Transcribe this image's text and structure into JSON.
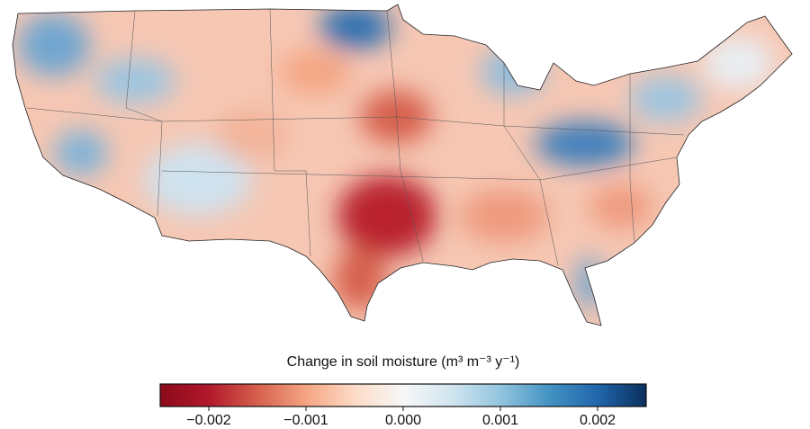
{
  "map": {
    "legend_title": "Change in soil moisture (m³ m⁻³ y⁻¹)",
    "colorbar": {
      "lim": [
        -0.0025,
        0.0025
      ],
      "ticks": [
        {
          "value": -0.002,
          "label": "−0.002"
        },
        {
          "value": -0.001,
          "label": "−0.001"
        },
        {
          "value": 0,
          "label": "0.000"
        },
        {
          "value": 0.001,
          "label": "0.001"
        },
        {
          "value": 0.002,
          "label": "0.002"
        }
      ],
      "colors": [
        "#8b0a1a",
        "#b2182b",
        "#d6604d",
        "#f4a582",
        "#fddbc7",
        "#f7f7f7",
        "#d1e5f0",
        "#92c5de",
        "#4393c3",
        "#2166ac",
        "#0a2f5c"
      ]
    }
  }
}
